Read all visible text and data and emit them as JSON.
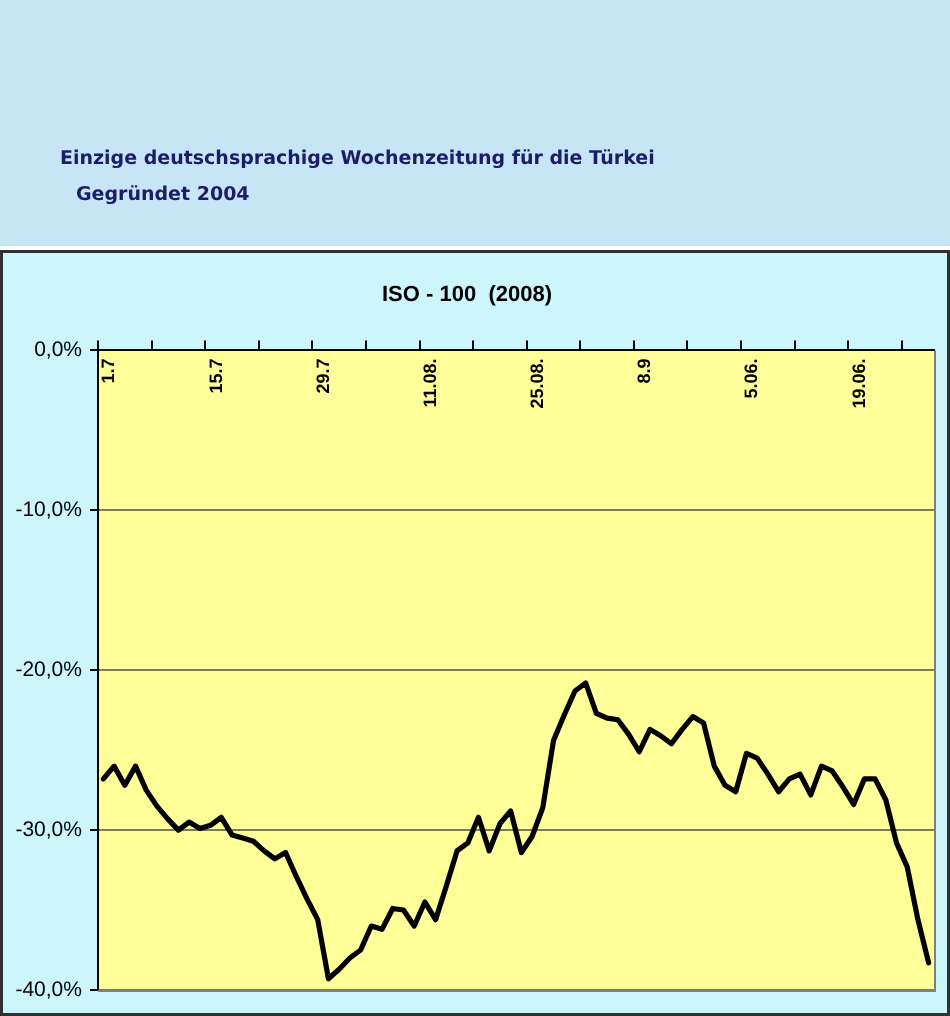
{
  "chart_data": {
    "type": "line",
    "title": "ISO - 100  (2008)",
    "categories": [
      "1.7",
      null,
      null,
      null,
      null,
      null,
      null,
      null,
      null,
      null,
      "15.7",
      null,
      null,
      null,
      null,
      null,
      null,
      null,
      null,
      null,
      "29.7",
      null,
      null,
      null,
      null,
      null,
      null,
      null,
      null,
      null,
      "11.08.",
      null,
      null,
      null,
      null,
      null,
      null,
      null,
      null,
      null,
      "25.08.",
      null,
      null,
      null,
      null,
      null,
      null,
      null,
      null,
      null,
      "8.9",
      null,
      null,
      null,
      null,
      null,
      null,
      null,
      null,
      null,
      "5.06.",
      null,
      null,
      null,
      null,
      null,
      null,
      null,
      null,
      null,
      "19.06.",
      null,
      null,
      null,
      null,
      null,
      null,
      null
    ],
    "values": [
      -26.8,
      -26.0,
      -27.2,
      -26.0,
      -27.5,
      -28.5,
      -29.3,
      -30.0,
      -29.5,
      -29.9,
      -29.7,
      -29.2,
      -30.3,
      -30.5,
      -30.7,
      -31.3,
      -31.8,
      -31.4,
      -32.9,
      -34.3,
      -35.6,
      -39.3,
      -38.7,
      -38.0,
      -37.5,
      -36.0,
      -36.2,
      -34.9,
      -35.0,
      -36.0,
      -34.5,
      -35.6,
      -33.5,
      -31.3,
      -30.8,
      -29.2,
      -31.3,
      -29.6,
      -28.8,
      -31.4,
      -30.4,
      -28.6,
      -24.4,
      -22.8,
      -21.3,
      -20.8,
      -22.7,
      -23.0,
      -23.1,
      -24.0,
      -25.1,
      -23.7,
      -24.1,
      -24.6,
      -23.7,
      -22.9,
      -23.3,
      -26.0,
      -27.2,
      -27.6,
      -25.2,
      -25.5,
      -26.5,
      -27.6,
      -26.8,
      -26.5,
      -27.8,
      -26.0,
      -26.3,
      -27.3,
      -28.4,
      -26.8,
      -26.8,
      -28.1,
      -30.8,
      -32.3,
      -35.6,
      -38.3
    ],
    "color": "#000000",
    "ylim": [
      -40,
      0
    ],
    "yticks": [
      {
        "value": -40,
        "label": "-40,0%"
      },
      {
        "value": -30,
        "label": "-30,0%"
      },
      {
        "value": -20,
        "label": "-20,0%"
      },
      {
        "value": -10,
        "label": "-10,0%"
      },
      {
        "value": 0,
        "label": "0,0%"
      }
    ],
    "grid": "y",
    "marker": "none",
    "line_style": "solid",
    "annotations": [
      "Einzige deutschsprachige Wochenzeitung für die Türkei",
      "Gegründet 2004"
    ]
  }
}
